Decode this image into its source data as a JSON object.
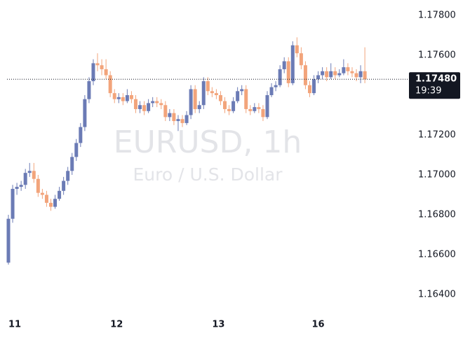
{
  "chart_data": {
    "type": "candlestick",
    "title": "EURUSD, 1h",
    "subtitle": "Euro / U.S. Dollar",
    "up_color": "#6b7bb5",
    "down_color": "#f2a47b",
    "open": [
      1.1656,
      1.1678,
      1.1693,
      1.1694,
      1.1695,
      1.1701,
      1.1702,
      1.1698,
      1.1691,
      1.169,
      1.1686,
      1.1684,
      1.1688,
      1.1692,
      1.1697,
      1.1702,
      1.1709,
      1.1716,
      1.1724,
      1.1738,
      1.1747,
      1.1756,
      1.1755,
      1.1753,
      1.175,
      1.1741,
      1.1738,
      1.1739,
      1.1737,
      1.174,
      1.1738,
      1.1733,
      1.1735,
      1.1732,
      1.1736,
      1.1737,
      1.1736,
      1.1735,
      1.1729,
      1.1731,
      1.1727,
      1.1728,
      1.1726,
      1.173,
      1.1743,
      1.1733,
      1.1735,
      1.1747,
      1.1742,
      1.1741,
      1.174,
      1.1737,
      1.1733,
      1.1732,
      1.1737,
      1.1742,
      1.1743,
      1.1733,
      1.1732,
      1.1734,
      1.1733,
      1.1729,
      1.174,
      1.1744,
      1.1745,
      1.1753,
      1.1757,
      1.1746,
      1.1765,
      1.1761,
      1.1755,
      1.1745,
      1.1741,
      1.1748,
      1.175,
      1.1752,
      1.1749,
      1.1752,
      1.175,
      1.1751,
      1.1754,
      1.1752,
      1.1751,
      1.1749,
      1.1752
    ],
    "high": [
      1.168,
      1.1695,
      1.1696,
      1.1697,
      1.1703,
      1.1706,
      1.1706,
      1.17,
      1.1693,
      1.1692,
      1.1688,
      1.169,
      1.1694,
      1.1699,
      1.1704,
      1.1711,
      1.1718,
      1.1726,
      1.174,
      1.1749,
      1.1758,
      1.1761,
      1.1758,
      1.1758,
      1.1752,
      1.1743,
      1.1741,
      1.1741,
      1.1743,
      1.1742,
      1.174,
      1.1737,
      1.1737,
      1.1738,
      1.1739,
      1.1739,
      1.1738,
      1.1737,
      1.1733,
      1.1733,
      1.173,
      1.173,
      1.1732,
      1.1745,
      1.1745,
      1.1737,
      1.1749,
      1.1749,
      1.1744,
      1.1743,
      1.1742,
      1.1739,
      1.1735,
      1.1739,
      1.1744,
      1.1745,
      1.1745,
      1.1735,
      1.1736,
      1.1736,
      1.1735,
      1.1742,
      1.1746,
      1.1747,
      1.1755,
      1.1759,
      1.1759,
      1.1767,
      1.1769,
      1.1764,
      1.1757,
      1.1747,
      1.175,
      1.1752,
      1.1754,
      1.1754,
      1.1756,
      1.1754,
      1.1753,
      1.1758,
      1.1756,
      1.1754,
      1.1753,
      1.1755,
      1.1764
    ],
    "low": [
      1.1655,
      1.1676,
      1.169,
      1.1692,
      1.1693,
      1.1699,
      1.1696,
      1.1689,
      1.1688,
      1.1684,
      1.1682,
      1.1683,
      1.1687,
      1.169,
      1.1695,
      1.17,
      1.1707,
      1.1714,
      1.1722,
      1.1736,
      1.1745,
      1.1752,
      1.175,
      1.1748,
      1.1739,
      1.1736,
      1.1736,
      1.1735,
      1.1736,
      1.1736,
      1.1731,
      1.1731,
      1.173,
      1.1731,
      1.1734,
      1.1734,
      1.1733,
      1.1727,
      1.1727,
      1.1725,
      1.1722,
      1.1724,
      1.1725,
      1.1728,
      1.1731,
      1.1731,
      1.1733,
      1.174,
      1.1739,
      1.1738,
      1.1735,
      1.1731,
      1.173,
      1.1731,
      1.1736,
      1.174,
      1.1731,
      1.173,
      1.1731,
      1.1731,
      1.1727,
      1.1728,
      1.1739,
      1.1742,
      1.1744,
      1.1751,
      1.1744,
      1.1745,
      1.1759,
      1.1753,
      1.1743,
      1.1739,
      1.174,
      1.1746,
      1.1748,
      1.1747,
      1.1748,
      1.1748,
      1.1749,
      1.175,
      1.175,
      1.1749,
      1.1747,
      1.1746,
      1.1746
    ],
    "close": [
      1.1678,
      1.1693,
      1.1694,
      1.1695,
      1.1701,
      1.1702,
      1.1698,
      1.1691,
      1.169,
      1.1686,
      1.1684,
      1.1688,
      1.1692,
      1.1697,
      1.1702,
      1.1709,
      1.1716,
      1.1724,
      1.1738,
      1.1747,
      1.1756,
      1.1755,
      1.1753,
      1.175,
      1.1741,
      1.1738,
      1.1739,
      1.1737,
      1.174,
      1.1738,
      1.1733,
      1.1735,
      1.1732,
      1.1736,
      1.1737,
      1.1736,
      1.1735,
      1.1729,
      1.1731,
      1.1727,
      1.1728,
      1.1726,
      1.173,
      1.1743,
      1.1733,
      1.1735,
      1.1747,
      1.1742,
      1.1741,
      1.174,
      1.1737,
      1.1733,
      1.1732,
      1.1737,
      1.1742,
      1.1743,
      1.1733,
      1.1732,
      1.1734,
      1.1733,
      1.1729,
      1.174,
      1.1744,
      1.1745,
      1.1753,
      1.1757,
      1.1746,
      1.1765,
      1.1761,
      1.1755,
      1.1745,
      1.1741,
      1.1748,
      1.175,
      1.1752,
      1.1749,
      1.1752,
      1.175,
      1.1751,
      1.1754,
      1.1752,
      1.1751,
      1.1749,
      1.1752,
      1.1748
    ],
    "xlim": [
      -0.33,
      93.9
    ],
    "xticks": [
      {
        "value": 1.5,
        "label": "11"
      },
      {
        "value": 25.5,
        "label": "12"
      },
      {
        "value": 49.5,
        "label": "13"
      },
      {
        "value": 73,
        "label": "16"
      }
    ],
    "ylim": [
      1.163,
      1.178
    ],
    "yticks": [
      {
        "value": 1.164,
        "label": "1.16400"
      },
      {
        "value": 1.166,
        "label": "1.16600"
      },
      {
        "value": 1.168,
        "label": "1.16800"
      },
      {
        "value": 1.17,
        "label": "1.17000"
      },
      {
        "value": 1.172,
        "label": "1.17200"
      },
      {
        "value": 1.174,
        "label": "1.17400"
      },
      {
        "value": 1.176,
        "label": "1.17600"
      },
      {
        "value": 1.178,
        "label": "1.17800"
      }
    ],
    "last_price": {
      "value": 1.1748,
      "label": "1.17480"
    },
    "countdown": "19:39"
  }
}
